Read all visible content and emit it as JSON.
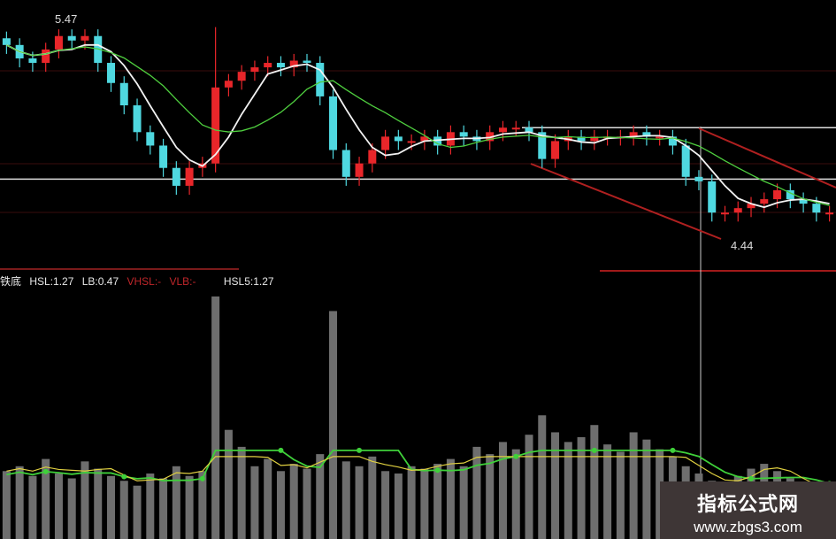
{
  "chart_data": {
    "type": "candlestick",
    "price_panel": {
      "close": [
        5.34,
        5.28,
        5.26,
        5.32,
        5.38,
        5.36,
        5.38,
        5.26,
        5.17,
        5.07,
        4.95,
        4.89,
        4.79,
        4.71,
        4.79,
        4.81,
        5.15,
        5.18,
        5.22,
        5.24,
        5.26,
        5.24,
        5.27,
        5.26,
        5.11,
        4.87,
        4.75,
        4.81,
        4.87,
        4.93,
        4.91,
        4.91,
        4.93,
        4.89,
        4.95,
        4.93,
        4.91,
        4.95,
        4.97,
        4.97,
        4.95,
        4.83,
        4.91,
        4.93,
        4.91,
        4.93,
        4.93,
        4.93,
        4.95,
        4.93,
        4.93,
        4.89,
        4.75,
        4.73,
        4.59,
        4.59,
        4.61,
        4.63,
        4.65,
        4.69,
        4.65,
        4.63,
        4.59,
        4.59
      ],
      "ylim": [
        4.25,
        5.55
      ],
      "annotations": [
        {
          "text": "5.47",
          "value": 5.47
        },
        {
          "text": "4.44",
          "value": 4.44
        }
      ],
      "up_color": "#e8262a",
      "down_color": "#4fd8e0",
      "ma_colors": [
        "#f2f2f2",
        "#4fcf3f"
      ],
      "support_line": 4.74,
      "resistance_line": 4.97
    },
    "volume_panel": {
      "values": [
        28,
        30,
        26,
        33,
        27,
        25,
        32,
        29,
        26,
        24,
        22,
        27,
        25,
        30,
        26,
        28,
        100,
        45,
        38,
        30,
        33,
        28,
        31,
        29,
        35,
        94,
        32,
        30,
        34,
        28,
        27,
        30,
        29,
        31,
        33,
        30,
        38,
        35,
        40,
        37,
        43,
        51,
        44,
        40,
        42,
        47,
        39,
        36,
        44,
        41,
        37,
        34,
        30,
        27,
        24,
        22,
        26,
        29,
        31,
        28,
        25,
        22,
        20,
        20
      ],
      "line_colors": {
        "hsl": "#3fd03a",
        "vhsl": "#e0d040",
        "vlb": "#d02a2a"
      }
    }
  },
  "indicator_header": {
    "name": "铁底",
    "hsl": "HSL:1.27",
    "lb": "LB:0.47",
    "vhsl": "VHSL:-",
    "vlb": "VLB:-",
    "hsl5": "HSL5:1.27"
  },
  "watermark": {
    "title": "指标公式网",
    "url": "www.zbgs3.com"
  }
}
